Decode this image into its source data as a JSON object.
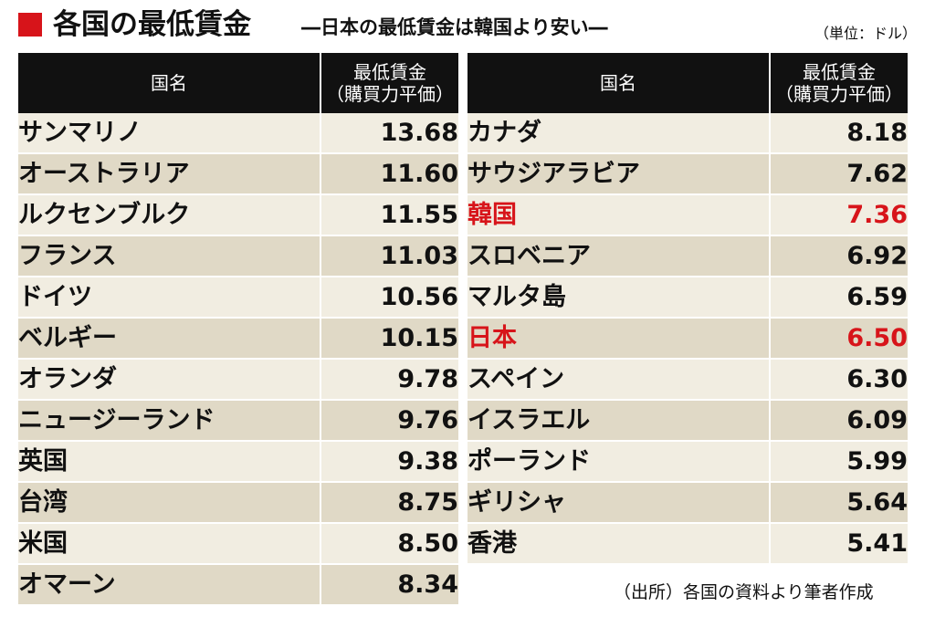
{
  "title": {
    "main": "各国の最低賃金",
    "subtitle": "―日本の最低賃金は韓国より安い―",
    "unit": "（単位：ドル）"
  },
  "header": {
    "country": "国名",
    "wage_line1": "最低賃金",
    "wage_line2": "（購買力平価）"
  },
  "left_rows": [
    {
      "country": "サンマリノ",
      "wage": "13.68"
    },
    {
      "country": "オーストラリア",
      "wage": "11.60"
    },
    {
      "country": "ルクセンブルク",
      "wage": "11.55"
    },
    {
      "country": "フランス",
      "wage": "11.03"
    },
    {
      "country": "ドイツ",
      "wage": "10.56"
    },
    {
      "country": "ベルギー",
      "wage": "10.15"
    },
    {
      "country": "オランダ",
      "wage": "9.78"
    },
    {
      "country": "ニュージーランド",
      "wage": "9.76"
    },
    {
      "country": "英国",
      "wage": "9.38"
    },
    {
      "country": "台湾",
      "wage": "8.75"
    },
    {
      "country": "米国",
      "wage": "8.50"
    },
    {
      "country": "オマーン",
      "wage": "8.34"
    }
  ],
  "right_rows": [
    {
      "country": "カナダ",
      "wage": "8.18"
    },
    {
      "country": "サウジアラビア",
      "wage": "7.62"
    },
    {
      "country": "韓国",
      "wage": "7.36"
    },
    {
      "country": "スロベニア",
      "wage": "6.92"
    },
    {
      "country": "マルタ島",
      "wage": "6.59"
    },
    {
      "country": "日本",
      "wage": "6.50"
    },
    {
      "country": "スペイン",
      "wage": "6.30"
    },
    {
      "country": "イスラエル",
      "wage": "6.09"
    },
    {
      "country": "ポーランド",
      "wage": "5.99"
    },
    {
      "country": "ギリシャ",
      "wage": "5.64"
    },
    {
      "country": "香港",
      "wage": "5.41"
    }
  ],
  "source": "（出所）各国の資料より筆者作成",
  "colors": {
    "accent_red": "#d7141a",
    "header_bg": "#111111",
    "row_light": "#f1ede1",
    "row_dark": "#e0d9c6"
  }
}
